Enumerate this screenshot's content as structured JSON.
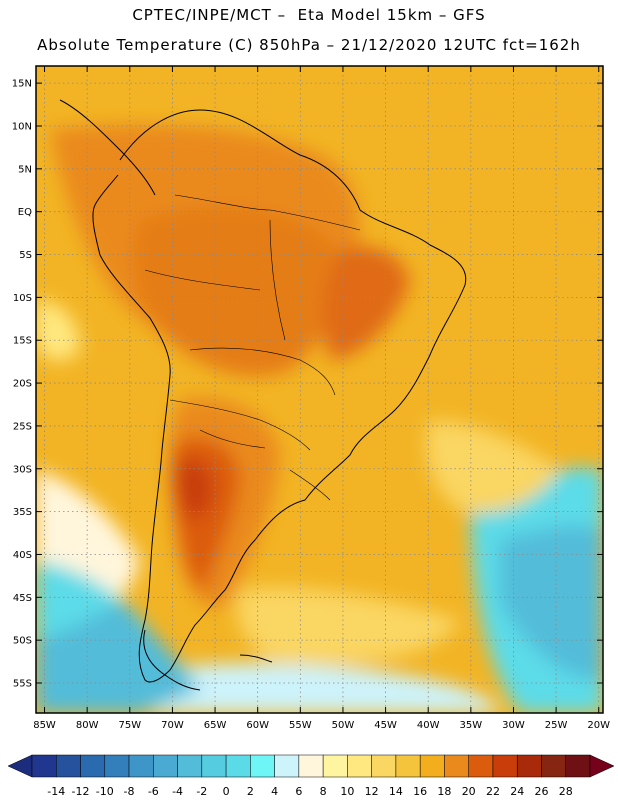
{
  "header": {
    "line1": "CPTEC/INPE/MCT –  Eta Model 15km – GFS",
    "line2": "Absolute Temperature (C) 850hPa – 21/12/2020 12UTC fct=162h"
  },
  "map": {
    "lat_labels": [
      "15N",
      "10N",
      "5N",
      "EQ",
      "5S",
      "10S",
      "15S",
      "20S",
      "25S",
      "30S",
      "35S",
      "40S",
      "45S",
      "50S",
      "55S"
    ],
    "lon_labels": [
      "85W",
      "80W",
      "75W",
      "70W",
      "65W",
      "60W",
      "55W",
      "50W",
      "45W",
      "40W",
      "35W",
      "30W",
      "25W",
      "20W"
    ],
    "lat_values": [
      15,
      10,
      5,
      0,
      -5,
      -10,
      -15,
      -20,
      -25,
      -30,
      -35,
      -40,
      -45,
      -50,
      -55
    ],
    "lon_values": [
      -85,
      -80,
      -75,
      -70,
      -65,
      -60,
      -55,
      -50,
      -45,
      -40,
      -35,
      -30,
      -25,
      -20
    ],
    "extent": {
      "lon_min": -86,
      "lon_max": -19.5,
      "lat_min": -58.5,
      "lat_max": 17
    }
  },
  "colorbar": {
    "labels": [
      "-14",
      "-12",
      "-10",
      "-8",
      "-6",
      "-4",
      "-2",
      "0",
      "2",
      "4",
      "6",
      "8",
      "10",
      "12",
      "14",
      "16",
      "18",
      "20",
      "22",
      "24",
      "26",
      "28"
    ],
    "colors": [
      "#21368f",
      "#26519d",
      "#2a6aae",
      "#327fbc",
      "#3e95c8",
      "#4aaad2",
      "#52bcd9",
      "#55ccdf",
      "#5bdbe8",
      "#6ef6f6",
      "#cdf3fb",
      "#fff6dc",
      "#fff5a0",
      "#ffe880",
      "#fad662",
      "#f4c43c",
      "#f2ae1c",
      "#ea8a1c",
      "#dc5c0e",
      "#c83d0a",
      "#a82a0a",
      "#862612",
      "#6e1014"
    ],
    "low_color": "#1d2d7d",
    "high_color": "#75021a"
  }
}
